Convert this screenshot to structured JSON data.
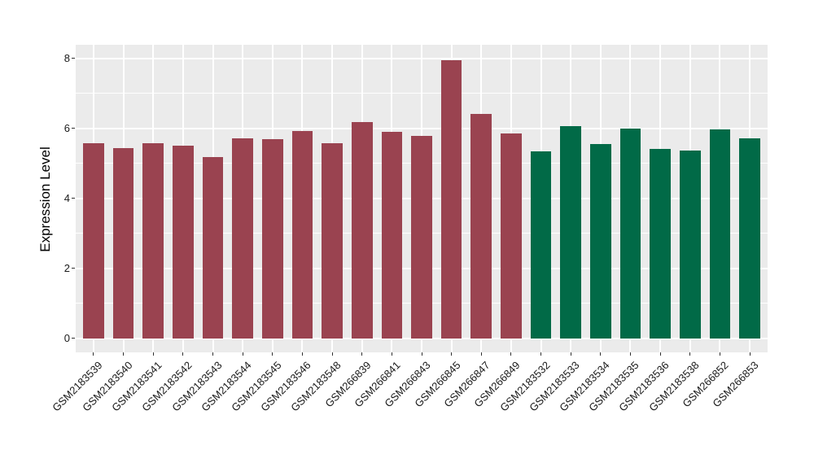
{
  "figure": {
    "background_color": "#FFFFFF",
    "panel_background_color": "#EBEBEB",
    "gridline_color": "#FFFFFF",
    "tick_color": "#333333",
    "label_color": "#1a1a1a"
  },
  "chart_data": {
    "type": "bar",
    "title": "",
    "xlabel": "",
    "ylabel": "Expression Level",
    "ylim": [
      -0.4,
      8.4
    ],
    "yticks": [
      0,
      2,
      4,
      6,
      8
    ],
    "yticks_minor": [
      1,
      3,
      5,
      7
    ],
    "legend_position": "none",
    "grid": {
      "horizontal_major": true,
      "horizontal_minor": true,
      "vertical_major_at_bar_centers": true
    },
    "group_colors": {
      "red": "#9A4350",
      "green": "#016A47"
    },
    "categories": [
      "GSM2183539",
      "GSM2183540",
      "GSM2183541",
      "GSM2183542",
      "GSM2183543",
      "GSM2183544",
      "GSM2183545",
      "GSM2183546",
      "GSM2183548",
      "GSM266839",
      "GSM266841",
      "GSM266843",
      "GSM266845",
      "GSM266847",
      "GSM266849",
      "GSM2183532",
      "GSM2183533",
      "GSM2183534",
      "GSM2183535",
      "GSM2183536",
      "GSM2183538",
      "GSM266852",
      "GSM266853"
    ],
    "values": [
      5.57,
      5.43,
      5.58,
      5.49,
      5.18,
      5.71,
      5.69,
      5.92,
      5.56,
      6.17,
      5.9,
      5.77,
      7.94,
      6.41,
      5.85,
      5.34,
      6.05,
      5.55,
      5.98,
      5.4,
      5.36,
      5.96,
      5.71
    ],
    "groups": [
      "red",
      "red",
      "red",
      "red",
      "red",
      "red",
      "red",
      "red",
      "red",
      "red",
      "red",
      "red",
      "red",
      "red",
      "red",
      "green",
      "green",
      "green",
      "green",
      "green",
      "green",
      "green",
      "green"
    ]
  }
}
